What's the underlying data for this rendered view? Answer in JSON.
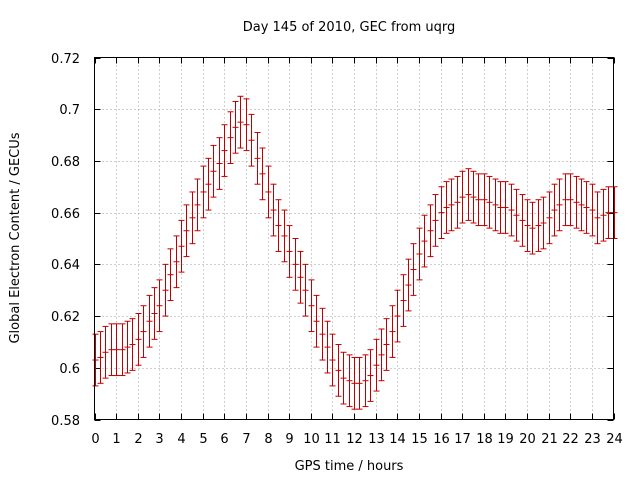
{
  "chart_data": {
    "type": "scatter",
    "title": "Day 145 of 2010, GEC from uqrg",
    "xlabel": "GPS time / hours",
    "ylabel": "Global Electron Content / GECUs",
    "xlim": [
      0,
      24
    ],
    "ylim": [
      0.58,
      0.72
    ],
    "xticks": [
      "0",
      "1",
      "2",
      "3",
      "4",
      "5",
      "6",
      "7",
      "8",
      "9",
      "10",
      "11",
      "12",
      "13",
      "14",
      "15",
      "16",
      "17",
      "18",
      "19",
      "20",
      "21",
      "22",
      "23",
      "24"
    ],
    "yticks": [
      "0.58",
      "0.6",
      "0.62",
      "0.64",
      "0.66",
      "0.68",
      "0.7",
      "0.72"
    ],
    "grid": true,
    "error_bar_halfwidth": 0.01,
    "series_color": "#c00000",
    "x": [
      0.0,
      0.25,
      0.5,
      0.75,
      1.0,
      1.25,
      1.5,
      1.75,
      2.0,
      2.25,
      2.5,
      2.75,
      3.0,
      3.25,
      3.5,
      3.75,
      4.0,
      4.25,
      4.5,
      4.75,
      5.0,
      5.25,
      5.5,
      5.75,
      6.0,
      6.25,
      6.5,
      6.75,
      7.0,
      7.25,
      7.5,
      7.75,
      8.0,
      8.25,
      8.5,
      8.75,
      9.0,
      9.25,
      9.5,
      9.75,
      10.0,
      10.25,
      10.5,
      10.75,
      11.0,
      11.25,
      11.5,
      11.75,
      12.0,
      12.25,
      12.5,
      12.75,
      13.0,
      13.25,
      13.5,
      13.75,
      14.0,
      14.25,
      14.5,
      14.75,
      15.0,
      15.25,
      15.5,
      15.75,
      16.0,
      16.25,
      16.5,
      16.75,
      17.0,
      17.25,
      17.5,
      17.75,
      18.0,
      18.25,
      18.5,
      18.75,
      19.0,
      19.25,
      19.5,
      19.75,
      20.0,
      20.25,
      20.5,
      20.75,
      21.0,
      21.25,
      21.5,
      21.75,
      22.0,
      22.25,
      22.5,
      22.75,
      23.0,
      23.25,
      23.5,
      23.75,
      24.0
    ],
    "y": [
      0.603,
      0.604,
      0.606,
      0.607,
      0.607,
      0.607,
      0.608,
      0.609,
      0.611,
      0.614,
      0.618,
      0.621,
      0.624,
      0.63,
      0.636,
      0.641,
      0.647,
      0.653,
      0.658,
      0.663,
      0.668,
      0.671,
      0.676,
      0.679,
      0.684,
      0.689,
      0.693,
      0.695,
      0.694,
      0.688,
      0.681,
      0.675,
      0.668,
      0.661,
      0.655,
      0.651,
      0.645,
      0.64,
      0.635,
      0.63,
      0.624,
      0.618,
      0.613,
      0.608,
      0.603,
      0.599,
      0.596,
      0.595,
      0.594,
      0.594,
      0.595,
      0.597,
      0.601,
      0.605,
      0.609,
      0.614,
      0.62,
      0.626,
      0.632,
      0.638,
      0.644,
      0.649,
      0.653,
      0.657,
      0.66,
      0.662,
      0.663,
      0.664,
      0.666,
      0.667,
      0.666,
      0.665,
      0.665,
      0.664,
      0.663,
      0.662,
      0.662,
      0.661,
      0.659,
      0.657,
      0.655,
      0.654,
      0.655,
      0.656,
      0.658,
      0.661,
      0.663,
      0.665,
      0.665,
      0.664,
      0.663,
      0.662,
      0.661,
      0.658,
      0.659,
      0.66,
      0.66
    ]
  }
}
